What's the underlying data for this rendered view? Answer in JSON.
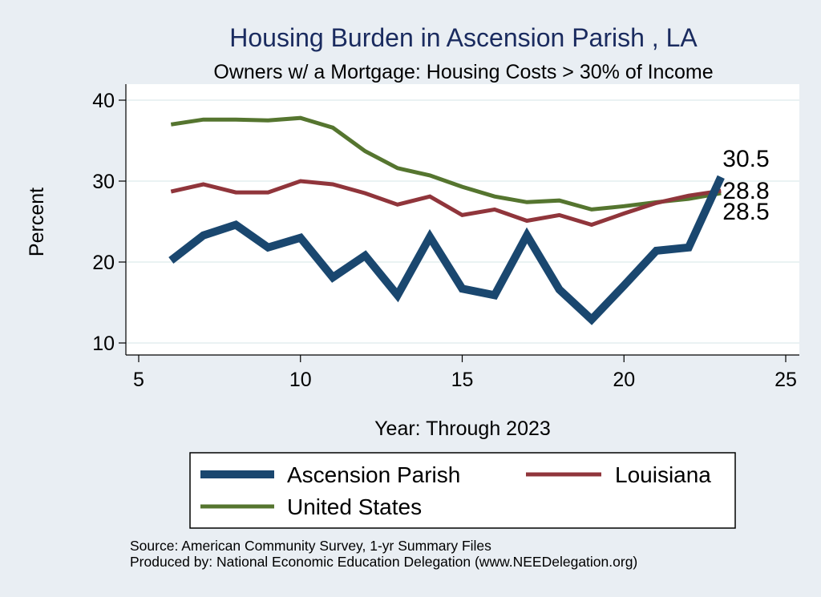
{
  "chart_data": {
    "type": "line",
    "title": "Housing Burden in Ascension Parish , LA",
    "subtitle": "Owners w/ a Mortgage: Housing Costs > 30% of Income",
    "xlabel": "Year: Through 2023",
    "ylabel": "Percent",
    "xlim": [
      5,
      25
    ],
    "ylim": [
      10,
      40
    ],
    "x_ticks": [
      "5",
      "10",
      "15",
      "20",
      "25"
    ],
    "y_ticks": [
      "10",
      "20",
      "30",
      "40"
    ],
    "grid": true,
    "legend_position": "bottom",
    "x": [
      6,
      7,
      8,
      9,
      10,
      11,
      12,
      13,
      14,
      15,
      16,
      17,
      18,
      19,
      20,
      21,
      22,
      23
    ],
    "series": [
      {
        "name": "Ascension Parish",
        "color": "#1a476f",
        "values": [
          20.2,
          23.3,
          24.6,
          21.8,
          23.0,
          18.1,
          20.8,
          15.9,
          23.1,
          16.7,
          15.9,
          23.3,
          16.6,
          12.9,
          17.1,
          21.4,
          21.8,
          30.5
        ],
        "end_label": "30.5"
      },
      {
        "name": "Louisiana",
        "color": "#90353b",
        "values": [
          28.7,
          29.6,
          28.6,
          28.6,
          30.0,
          29.6,
          28.5,
          27.1,
          28.1,
          25.8,
          26.5,
          25.1,
          25.8,
          24.6,
          26.0,
          27.3,
          28.2,
          28.8
        ],
        "end_label": "28.8"
      },
      {
        "name": "United States",
        "color": "#55752f",
        "values": [
          37.0,
          37.6,
          37.6,
          37.5,
          37.8,
          36.6,
          33.7,
          31.6,
          30.7,
          29.3,
          28.1,
          27.4,
          27.6,
          26.5,
          26.9,
          27.4,
          27.8,
          28.5
        ],
        "end_label": "28.5"
      }
    ]
  },
  "source_note": "Source: American Community Survey, 1-yr Summary Files",
  "producer_note": "Produced by: National Economic Education Delegation (www.NEEDelegation.org)",
  "colors": {
    "background": "#e9eef3",
    "plot_background": "#ffffff",
    "grid": "#eaf2f3",
    "title": "#1a2b5f"
  }
}
